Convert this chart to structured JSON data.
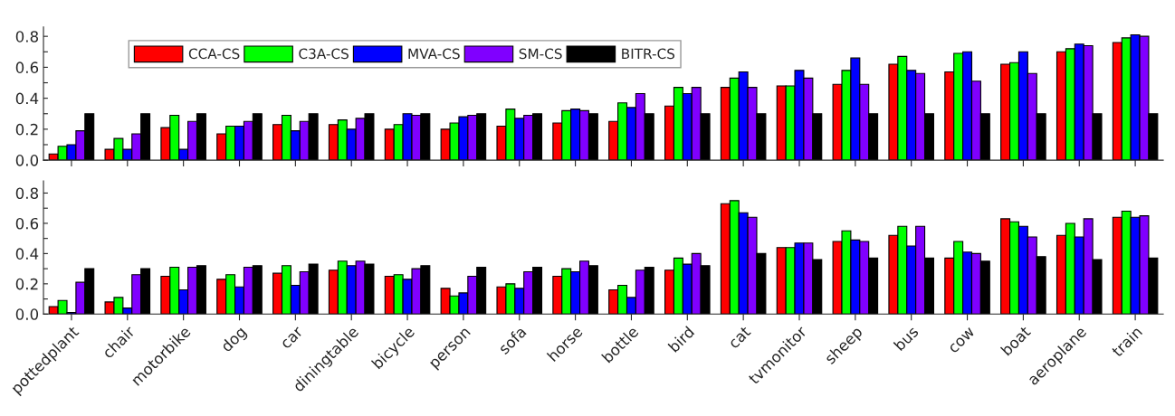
{
  "chart_data": [
    {
      "type": "bar",
      "categories": [
        null,
        null,
        null,
        null,
        null,
        null,
        null,
        null,
        null,
        null,
        null,
        null,
        null,
        null,
        null,
        null,
        null,
        null,
        null,
        null
      ],
      "series": [
        {
          "name": "CCA-CS",
          "color": "#ff0000",
          "values": [
            0.04,
            0.07,
            0.21,
            0.17,
            0.23,
            0.23,
            0.2,
            0.2,
            0.22,
            0.24,
            0.25,
            0.35,
            0.47,
            0.48,
            0.49,
            0.62,
            0.57,
            0.62,
            0.7,
            0.76
          ]
        },
        {
          "name": "C3A-CS",
          "color": "#00ff00",
          "values": [
            0.09,
            0.14,
            0.29,
            0.22,
            0.29,
            0.26,
            0.23,
            0.24,
            0.33,
            0.32,
            0.37,
            0.47,
            0.53,
            0.48,
            0.58,
            0.67,
            0.69,
            0.63,
            0.72,
            0.79
          ]
        },
        {
          "name": "MVA-CS",
          "color": "#0000ff",
          "values": [
            0.1,
            0.07,
            0.07,
            0.22,
            0.19,
            0.2,
            0.3,
            0.28,
            0.27,
            0.33,
            0.34,
            0.43,
            0.57,
            0.58,
            0.66,
            0.58,
            0.7,
            0.7,
            0.75,
            0.81
          ]
        },
        {
          "name": "SM-CS",
          "color": "#8000ff",
          "values": [
            0.19,
            0.17,
            0.25,
            0.25,
            0.25,
            0.27,
            0.29,
            0.29,
            0.29,
            0.32,
            0.43,
            0.47,
            0.47,
            0.53,
            0.49,
            0.56,
            0.51,
            0.56,
            0.74,
            0.8
          ]
        },
        {
          "name": "BITR-CS",
          "color": "#000000",
          "values": [
            0.3,
            0.3,
            0.3,
            0.3,
            0.3,
            0.3,
            0.3,
            0.3,
            0.3,
            0.3,
            0.3,
            0.3,
            0.3,
            0.3,
            0.3,
            0.3,
            0.3,
            0.3,
            0.3,
            0.3
          ]
        }
      ],
      "ylim": [
        0,
        0.86
      ],
      "yticks": [
        {
          "value": 0,
          "label": "0.0"
        },
        {
          "value": 0.1,
          "label": null
        },
        0.2,
        {
          "value": 0.3,
          "label": null
        },
        0.4,
        {
          "value": 0.5,
          "label": null
        },
        0.6,
        {
          "value": 0.7,
          "label": null
        },
        0.8
      ],
      "tick_labels": "y",
      "legend": "top left",
      "grid": false
    },
    {
      "type": "bar",
      "categories": [
        "pottedplant",
        "chair",
        "motorbike",
        "dog",
        "car",
        "diningtable",
        "bicycle",
        "person",
        "sofa",
        "horse",
        "bottle",
        "bird",
        "cat",
        "tvmonitor",
        "sheep",
        "bus",
        "cow",
        "boat",
        "aeroplane",
        "train"
      ],
      "series": [
        {
          "color": "#ff0000",
          "values": [
            0.05,
            0.08,
            0.25,
            0.23,
            0.27,
            0.29,
            0.25,
            0.17,
            0.18,
            0.25,
            0.16,
            0.29,
            0.73,
            0.44,
            0.48,
            0.52,
            0.37,
            0.63,
            0.52,
            0.64
          ]
        },
        {
          "color": "#00ff00",
          "values": [
            0.09,
            0.11,
            0.31,
            0.26,
            0.32,
            0.35,
            0.26,
            0.12,
            0.2,
            0.3,
            0.19,
            0.37,
            0.75,
            0.44,
            0.55,
            0.58,
            0.48,
            0.61,
            0.6,
            0.68
          ]
        },
        {
          "color": "#0000ff",
          "values": [
            0.01,
            0.04,
            0.16,
            0.18,
            0.19,
            0.32,
            0.23,
            0.14,
            0.17,
            0.28,
            0.11,
            0.33,
            0.67,
            0.47,
            0.49,
            0.45,
            0.41,
            0.58,
            0.51,
            0.64
          ]
        },
        {
          "color": "#8000ff",
          "values": [
            0.21,
            0.26,
            0.31,
            0.31,
            0.28,
            0.35,
            0.3,
            0.25,
            0.28,
            0.35,
            0.29,
            0.4,
            0.64,
            0.47,
            0.48,
            0.58,
            0.4,
            0.51,
            0.63,
            0.65
          ]
        },
        {
          "color": "#000000",
          "values": [
            0.3,
            0.3,
            0.32,
            0.32,
            0.33,
            0.33,
            0.32,
            0.31,
            0.31,
            0.32,
            0.31,
            0.32,
            0.4,
            0.36,
            0.37,
            0.37,
            0.35,
            0.38,
            0.36,
            0.37
          ]
        }
      ],
      "ylim": [
        0,
        0.88
      ],
      "yticks": [
        {
          "value": 0,
          "label": "0.0"
        },
        {
          "value": 0.1,
          "label": null
        },
        0.2,
        {
          "value": 0.3,
          "label": null
        },
        0.4,
        {
          "value": 0.5,
          "label": null
        },
        0.6,
        {
          "value": 0.7,
          "label": null
        },
        0.8
      ],
      "grid": false
    }
  ]
}
